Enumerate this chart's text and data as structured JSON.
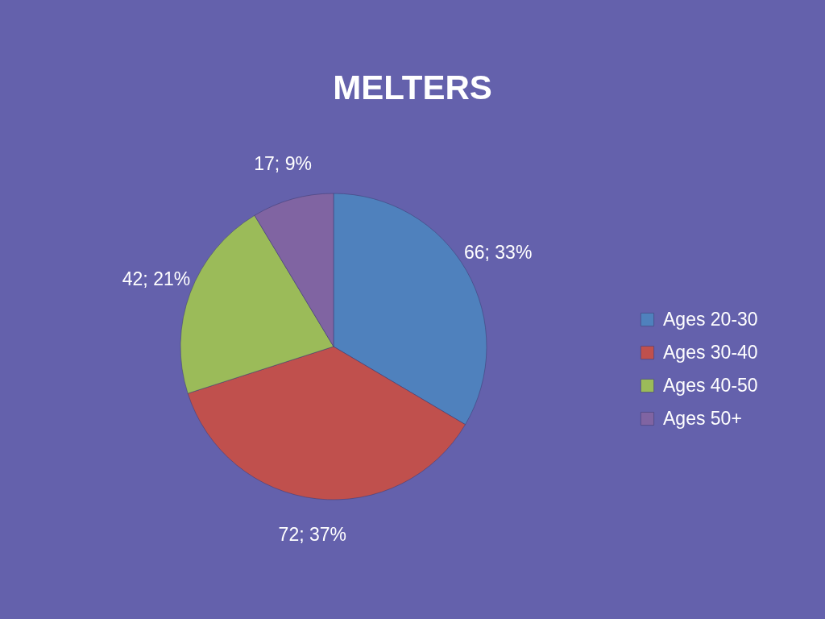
{
  "chart_data": {
    "type": "pie",
    "title": "MELTERS",
    "categories": [
      "Ages 20-30",
      "Ages 30-40",
      "Ages 40-50",
      "Ages 50+"
    ],
    "values": [
      66,
      72,
      42,
      17
    ],
    "colors": [
      "#4f81bd",
      "#c0504d",
      "#9bbb59",
      "#8064a2"
    ],
    "value_labels": [
      "66; 33%",
      "72; 37%",
      "42; 21%",
      "17; 9%"
    ],
    "legend": "right"
  }
}
